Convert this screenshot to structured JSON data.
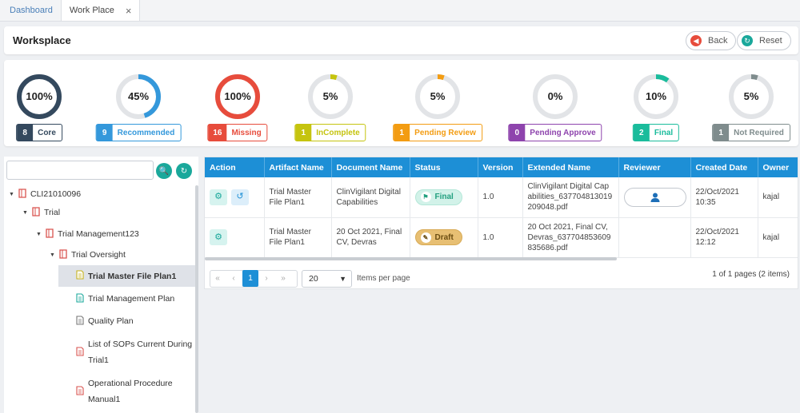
{
  "tabs": [
    {
      "label": "Dashboard"
    },
    {
      "label": "Work Place",
      "close": "×"
    }
  ],
  "header": {
    "title": "Worksplace",
    "back_label": "Back",
    "reset_label": "Reset"
  },
  "stats": [
    {
      "percent": "100%",
      "value": 100,
      "count": "8",
      "label": "Core",
      "color": "#34495e"
    },
    {
      "percent": "45%",
      "value": 45,
      "count": "9",
      "label": "Recommended",
      "color": "#3498db"
    },
    {
      "percent": "100%",
      "value": 100,
      "count": "16",
      "label": "Missing",
      "color": "#e74c3c"
    },
    {
      "percent": "5%",
      "value": 5,
      "count": "1",
      "label": "InComplete",
      "color": "#c5c40f"
    },
    {
      "percent": "5%",
      "value": 5,
      "count": "1",
      "label": "Pending Review",
      "color": "#f39c12"
    },
    {
      "percent": "0%",
      "value": 0,
      "count": "0",
      "label": "Pending Approve",
      "color": "#8e44ad"
    },
    {
      "percent": "10%",
      "value": 10,
      "count": "2",
      "label": "Final",
      "color": "#1abc9c"
    },
    {
      "percent": "5%",
      "value": 5,
      "count": "1",
      "label": "Not Required",
      "color": "#7f8c8d"
    }
  ],
  "tree": {
    "search_value": "",
    "nodes": [
      {
        "label": "CLI21010096",
        "icon": "folder-icon"
      },
      {
        "label": "Trial",
        "icon": "folder-icon"
      },
      {
        "label": "Trial Management123",
        "icon": "folder-icon"
      },
      {
        "label": "Trial Oversight",
        "icon": "folder-icon"
      },
      {
        "label": "Trial Master File Plan1",
        "icon": "document-icon",
        "selected": true
      },
      {
        "label": "Trial Management Plan",
        "icon": "document-icon"
      },
      {
        "label": "Quality Plan",
        "icon": "document-icon"
      },
      {
        "label": "List of SOPs Current During",
        "label2": "Trial1",
        "icon": "pdf-icon"
      },
      {
        "label": "Operational Procedure",
        "label2": "Manual1",
        "icon": "pdf-icon"
      }
    ]
  },
  "grid": {
    "columns": [
      "Action",
      "Artifact Name",
      "Document Name",
      "Status",
      "Version",
      "Extended Name",
      "Reviewer",
      "Created Date",
      "Owner"
    ],
    "rows": [
      {
        "artifact": "Trial Master File Plan1",
        "document": "ClinVigilant Digital Capabilities",
        "status": "Final",
        "version": "1.0",
        "extended": "ClinVigilant Digital Capabilities_637704813019209048.pdf",
        "created": "22/Oct/2021 10:35",
        "owner": "kajal"
      },
      {
        "artifact": "Trial Master File Plan1",
        "document": "20 Oct 2021, Final CV, Devras",
        "status": "Draft",
        "version": "1.0",
        "extended": "20 Oct 2021, Final CV, Devras_637704853609835686.pdf",
        "created": "22/Oct/2021 12:12",
        "owner": "kajal"
      }
    ],
    "pager": {
      "first": "«",
      "prev": "‹",
      "current_page": "1",
      "next": "›",
      "last": "»",
      "page_size": "20",
      "items_per_page_label": "Items per page",
      "info": "1 of 1 pages (2 items)"
    }
  }
}
